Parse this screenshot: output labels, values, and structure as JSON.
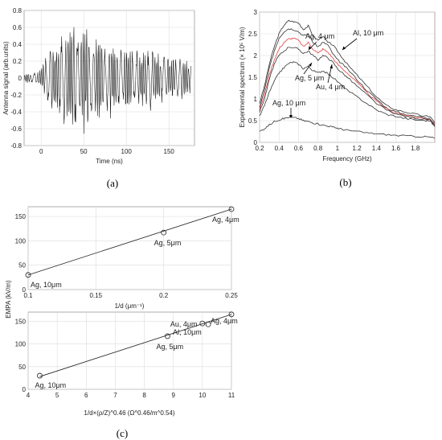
{
  "chart_data": [
    {
      "id": "a",
      "type": "line",
      "caption": "(a)",
      "xlabel": "Time (ns)",
      "ylabel": "Antenna signal (arb.units)",
      "xlim": [
        -20,
        180
      ],
      "ylim": [
        -0.8,
        0.8
      ],
      "xticks": [
        0,
        50,
        100,
        150
      ],
      "yticks": [
        -0.8,
        -0.6,
        -0.4,
        -0.2,
        0,
        0.2,
        0.4,
        0.6,
        0.8
      ],
      "grid": true,
      "series": [
        {
          "color": "#000000",
          "envelope": {
            "t": [
              -20,
              -5,
              0,
              5,
              10,
              15,
              20,
              25,
              30,
              35,
              40,
              45,
              50,
              55,
              60,
              65,
              70,
              80,
              90,
              100,
              110,
              120,
              130,
              140,
              150,
              160,
              170,
              176
            ],
            "amp": [
              0.05,
              0.08,
              0.12,
              0.3,
              0.4,
              0.45,
              0.5,
              0.55,
              0.6,
              0.68,
              0.7,
              0.66,
              0.62,
              0.58,
              0.52,
              0.48,
              0.45,
              0.4,
              0.38,
              0.38,
              0.36,
              0.34,
              0.33,
              0.3,
              0.28,
              0.26,
              0.22,
              0.2
            ]
          }
        }
      ]
    },
    {
      "id": "b",
      "type": "line",
      "caption": "(b)",
      "xlabel": "Frequency (GHz)",
      "ylabel": "Experimental spectrum (× 10⁵ V/m)",
      "xlim": [
        0.2,
        2.0
      ],
      "ylim": [
        0,
        3
      ],
      "xticks": [
        0.2,
        0.4,
        0.6,
        0.8,
        1,
        1.2,
        1.4,
        1.6,
        1.8
      ],
      "yticks": [
        0,
        0.5,
        1,
        1.5,
        2,
        2.5,
        3
      ],
      "grid": true,
      "x": [
        0.2,
        0.25,
        0.3,
        0.35,
        0.4,
        0.45,
        0.5,
        0.55,
        0.6,
        0.65,
        0.7,
        0.75,
        0.8,
        0.85,
        0.9,
        0.95,
        1.0,
        1.05,
        1.1,
        1.2,
        1.3,
        1.4,
        1.5,
        1.6,
        1.7,
        1.8,
        1.9,
        1.95,
        2.0
      ],
      "series": [
        {
          "color": "#333333",
          "values": [
            0.9,
            1.3,
            1.8,
            2.2,
            2.5,
            2.7,
            2.8,
            2.78,
            2.75,
            2.6,
            2.68,
            2.45,
            2.35,
            2.45,
            2.3,
            2.25,
            2.1,
            1.95,
            1.8,
            1.55,
            1.3,
            1.05,
            0.85,
            0.75,
            0.7,
            0.65,
            0.6,
            0.6,
            0.45
          ]
        },
        {
          "color": "#333333",
          "values": [
            0.8,
            1.2,
            1.7,
            2.1,
            2.4,
            2.55,
            2.62,
            2.6,
            2.55,
            2.45,
            2.5,
            2.3,
            2.2,
            2.3,
            2.25,
            2.05,
            1.9,
            1.8,
            1.7,
            1.45,
            1.2,
            1.0,
            0.8,
            0.7,
            0.65,
            0.6,
            0.58,
            0.55,
            0.4
          ]
        },
        {
          "color": "#e04040",
          "values": [
            0.75,
            1.1,
            1.55,
            1.9,
            2.15,
            2.3,
            2.38,
            2.4,
            2.35,
            2.2,
            2.3,
            2.15,
            2.05,
            2.15,
            2.08,
            1.95,
            1.8,
            1.7,
            1.6,
            1.38,
            1.15,
            0.95,
            0.78,
            0.68,
            0.62,
            0.58,
            0.55,
            0.53,
            0.4
          ]
        },
        {
          "color": "#333333",
          "values": [
            0.7,
            1.0,
            1.45,
            1.8,
            2.0,
            2.1,
            2.2,
            2.18,
            2.15,
            2.05,
            2.1,
            2.0,
            1.9,
            2.0,
            1.95,
            1.85,
            1.7,
            1.6,
            1.5,
            1.3,
            1.1,
            0.9,
            0.75,
            0.65,
            0.6,
            0.56,
            0.53,
            0.52,
            0.38
          ]
        },
        {
          "color": "#333333",
          "values": [
            0.6,
            0.85,
            1.15,
            1.4,
            1.6,
            1.72,
            1.82,
            1.85,
            1.8,
            1.7,
            1.75,
            1.65,
            1.6,
            1.65,
            1.58,
            1.5,
            1.4,
            1.3,
            1.2,
            1.05,
            0.9,
            0.75,
            0.65,
            0.6,
            0.55,
            0.52,
            0.5,
            0.5,
            0.36
          ]
        },
        {
          "color": "#333333",
          "values": [
            0.25,
            0.32,
            0.4,
            0.48,
            0.52,
            0.55,
            0.58,
            0.57,
            0.55,
            0.5,
            0.48,
            0.45,
            0.42,
            0.4,
            0.38,
            0.35,
            0.33,
            0.3,
            0.28,
            0.25,
            0.22,
            0.2,
            0.18,
            0.16,
            0.15,
            0.14,
            0.13,
            0.12,
            0.1
          ]
        }
      ],
      "annotations": [
        {
          "text": "Ag, 4 μm"
        },
        {
          "text": "Al, 10 μm"
        },
        {
          "text": "Au, 4 μm"
        },
        {
          "text": "Ag, 5 μm"
        },
        {
          "text": "Ag, 10 μm"
        }
      ]
    },
    {
      "id": "c-top",
      "type": "line",
      "xlabel": "1/d (μm⁻¹)",
      "xlim": [
        0.1,
        0.25
      ],
      "ylim": [
        0,
        170
      ],
      "xticks": [
        0.1,
        0.15,
        0.2,
        0.25
      ],
      "yticks": [
        0,
        50,
        100,
        150
      ],
      "grid": true,
      "fit": [
        [
          0.1,
          30
        ],
        [
          0.25,
          165
        ]
      ],
      "points": [
        {
          "x": 0.1,
          "y": 30,
          "label": "Ag, 10μm"
        },
        {
          "x": 0.2,
          "y": 117,
          "label": "Ag, 5μm"
        },
        {
          "x": 0.25,
          "y": 165,
          "label": "Ag, 4μm"
        }
      ]
    },
    {
      "id": "c-bottom",
      "type": "line",
      "caption": "(c)",
      "xlabel": "1/d×(ρ/Z)^0.46 (Ω^0.46/m^0.54)",
      "ylabel": "EMPA (kV/m)",
      "xlim": [
        4,
        11
      ],
      "ylim": [
        0,
        170
      ],
      "xticks": [
        4,
        5,
        6,
        7,
        8,
        9,
        10,
        11
      ],
      "yticks": [
        0,
        50,
        100,
        150
      ],
      "grid": true,
      "fit": [
        [
          4.4,
          28
        ],
        [
          11,
          165
        ]
      ],
      "points": [
        {
          "x": 4.4,
          "y": 30,
          "label": "Ag, 10μm"
        },
        {
          "x": 8.8,
          "y": 117,
          "label": "Ag, 5μm"
        },
        {
          "x": 10.0,
          "y": 145,
          "label": "Au, 4μm"
        },
        {
          "x": 10.2,
          "y": 143,
          "label": "Al, 10μm"
        },
        {
          "x": 11,
          "y": 165,
          "label": "Ag, 4μm"
        }
      ]
    }
  ]
}
